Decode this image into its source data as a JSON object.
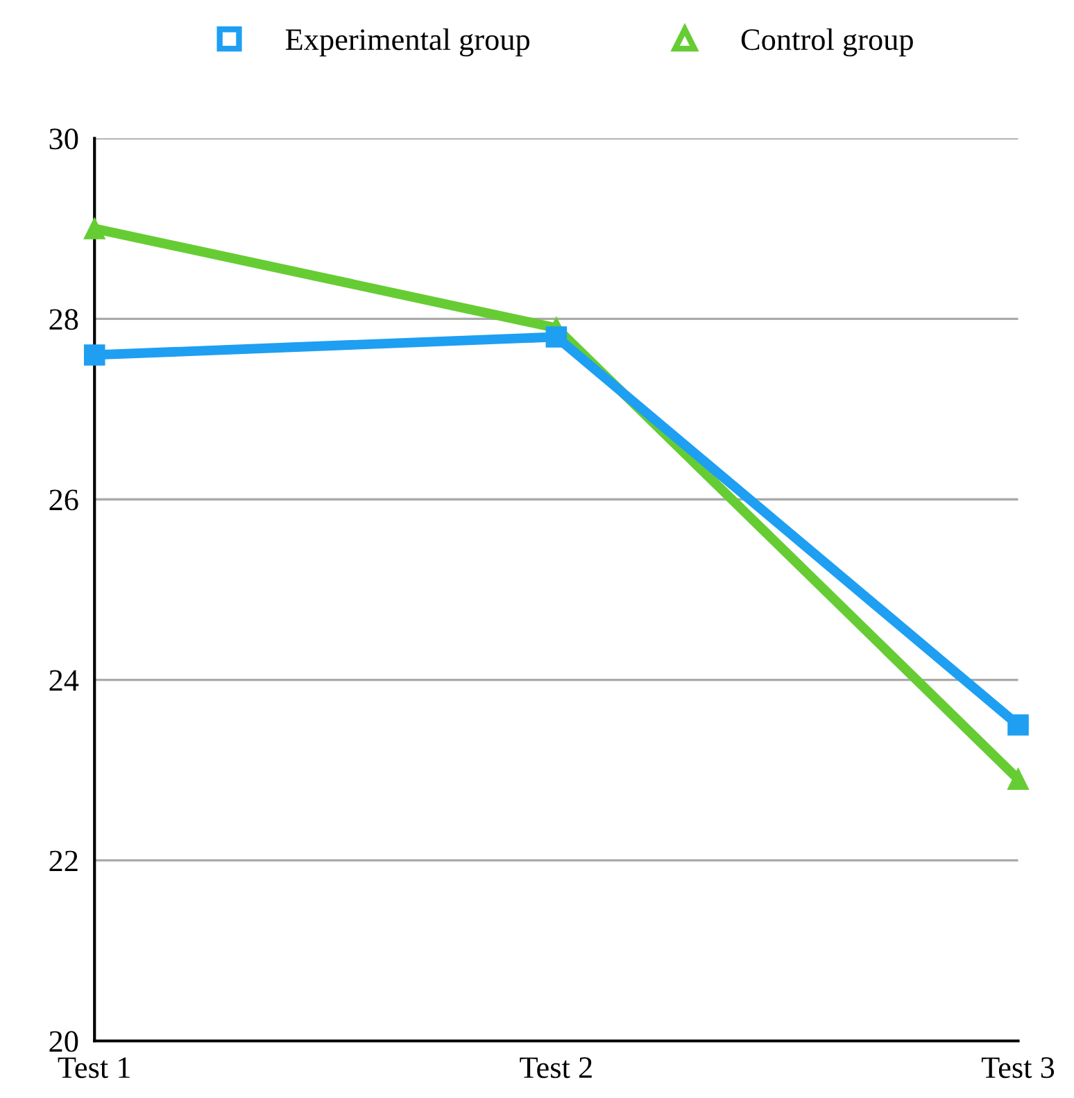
{
  "chart_data": {
    "type": "line",
    "categories": [
      "Test 1",
      "Test 2",
      "Test 3"
    ],
    "series": [
      {
        "name": "Experimental group",
        "color": "#1e9ff2",
        "values": [
          27.6,
          27.8,
          23.5
        ],
        "marker": "square"
      },
      {
        "name": "Control group",
        "color": "#66cc33",
        "values": [
          29.0,
          27.9,
          22.9
        ],
        "marker": "triangle"
      }
    ],
    "ylim": [
      20,
      30
    ],
    "yticks": [
      20,
      22,
      24,
      26,
      28,
      30
    ],
    "grid": "y",
    "legend": "top",
    "line_style": "solid"
  }
}
